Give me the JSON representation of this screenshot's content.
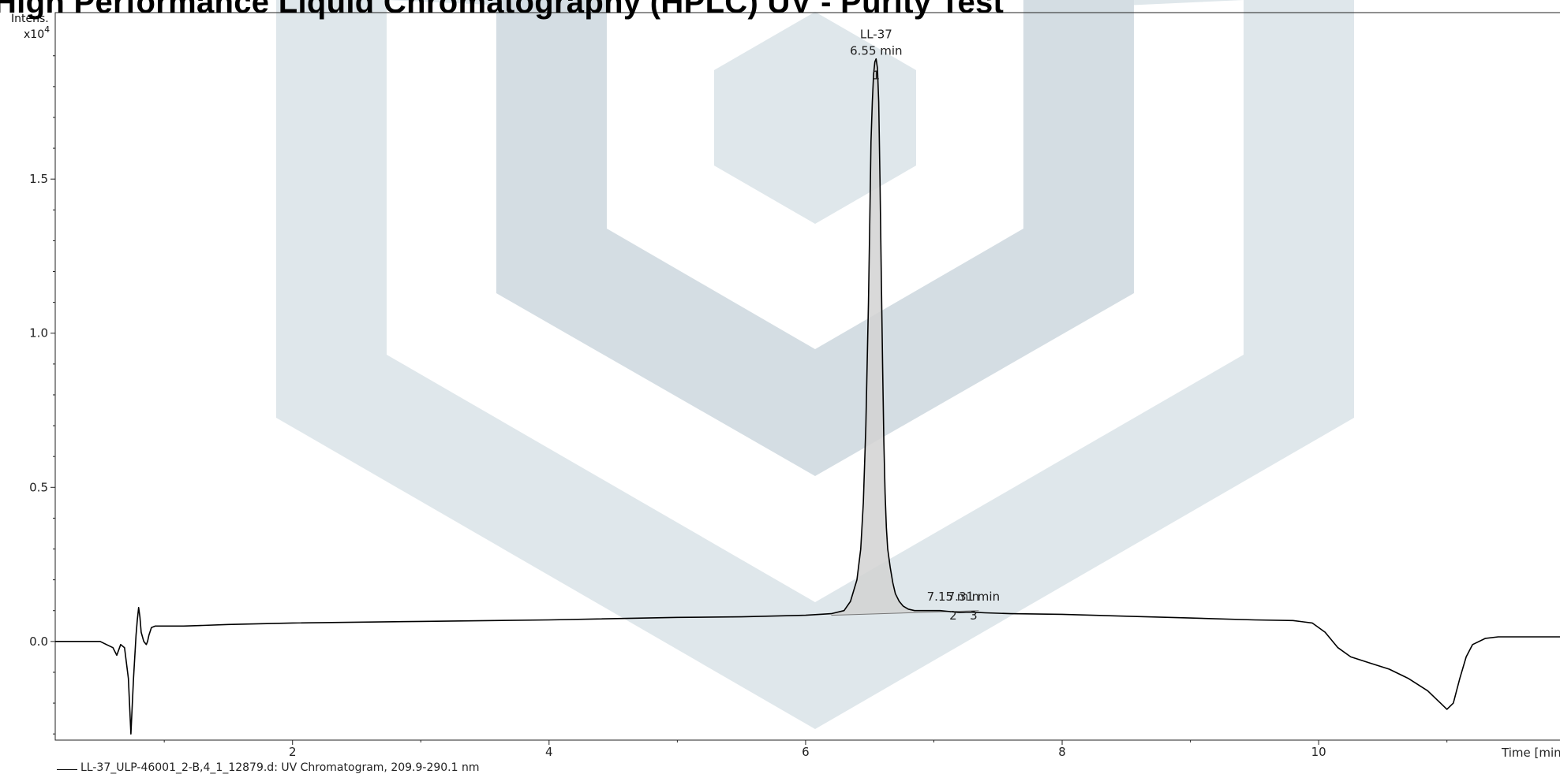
{
  "title": "High Performance Liquid Chromatography (HPLC) UV - Purity Test",
  "legend": "LL-37_ULP-46001_2-B,4_1_12879.d: UV Chromatogram, 209.9-290.1 nm",
  "chart_data": {
    "type": "line",
    "title": "High Performance Liquid Chromatography (HPLC) UV - Purity Test",
    "xlabel": "Time [min]",
    "ylabel": "Intens.",
    "yunit": "x10^4",
    "xlim": [
      0.15,
      11.9
    ],
    "ylim": [
      -0.32,
      2.04
    ],
    "xticks": [
      "2",
      "4",
      "6",
      "8",
      "10"
    ],
    "yticks": [
      "0.0",
      "0.5",
      "1.0",
      "1.5"
    ],
    "ytick_values": [
      0.0,
      0.5,
      1.0,
      1.5
    ],
    "xtick_values": [
      2,
      4,
      6,
      8,
      10
    ],
    "grid": false,
    "series": [
      {
        "name": "LL-37_ULP-46001_2-B,4_1_12879.d: UV Chromatogram, 209.9-290.1 nm",
        "x": [
          0.15,
          0.25,
          0.5,
          0.55,
          0.6,
          0.63,
          0.66,
          0.69,
          0.72,
          0.74,
          0.76,
          0.78,
          0.79,
          0.8,
          0.81,
          0.82,
          0.84,
          0.86,
          0.87,
          0.88,
          0.9,
          0.93,
          0.97,
          1.02,
          1.08,
          1.15,
          1.3,
          1.5,
          2.0,
          3.0,
          4.0,
          5.0,
          5.5,
          6.0,
          6.2,
          6.3,
          6.35,
          6.4,
          6.43,
          6.45,
          6.47,
          6.49,
          6.5,
          6.51,
          6.52,
          6.53,
          6.54,
          6.55,
          6.56,
          6.57,
          6.58,
          6.59,
          6.6,
          6.61,
          6.62,
          6.63,
          6.64,
          6.66,
          6.68,
          6.7,
          6.73,
          6.76,
          6.8,
          6.85,
          6.9,
          6.95,
          7.0,
          7.05,
          7.1,
          7.15,
          7.2,
          7.25,
          7.3,
          7.4,
          7.6,
          8.0,
          8.5,
          9.0,
          9.5,
          9.8,
          9.95,
          10.05,
          10.15,
          10.25,
          10.4,
          10.55,
          10.7,
          10.85,
          10.95,
          11.0,
          11.05,
          11.1,
          11.15,
          11.2,
          11.3,
          11.4,
          11.6,
          11.9
        ],
        "y": [
          0.0,
          0.0,
          0.0,
          -0.01,
          -0.02,
          -0.045,
          -0.01,
          -0.02,
          -0.12,
          -0.3,
          -0.12,
          0.02,
          0.07,
          0.11,
          0.08,
          0.03,
          0.0,
          -0.01,
          0.0,
          0.02,
          0.045,
          0.05,
          0.05,
          0.05,
          0.05,
          0.05,
          0.052,
          0.055,
          0.06,
          0.065,
          0.07,
          0.078,
          0.08,
          0.085,
          0.09,
          0.1,
          0.13,
          0.2,
          0.3,
          0.45,
          0.7,
          1.1,
          1.35,
          1.62,
          1.75,
          1.84,
          1.88,
          1.89,
          1.86,
          1.75,
          1.5,
          1.2,
          0.9,
          0.65,
          0.48,
          0.37,
          0.3,
          0.24,
          0.19,
          0.155,
          0.13,
          0.115,
          0.105,
          0.1,
          0.1,
          0.1,
          0.1,
          0.1,
          0.098,
          0.096,
          0.094,
          0.095,
          0.095,
          0.093,
          0.09,
          0.088,
          0.082,
          0.076,
          0.07,
          0.068,
          0.06,
          0.03,
          -0.02,
          -0.05,
          -0.07,
          -0.09,
          -0.12,
          -0.16,
          -0.2,
          -0.22,
          -0.2,
          -0.12,
          -0.05,
          -0.01,
          0.01,
          0.015,
          0.015,
          0.015
        ]
      }
    ],
    "peaks": [
      {
        "label": "LL-37",
        "time": "6.55 min",
        "x": 6.55,
        "y": 1.89,
        "number": "1"
      },
      {
        "label": "",
        "time": "7.15 min",
        "x": 7.15,
        "y": 0.1,
        "number": "2"
      },
      {
        "label": "",
        "time": "7.31 min",
        "x": 7.31,
        "y": 0.1,
        "number": "3"
      }
    ]
  }
}
